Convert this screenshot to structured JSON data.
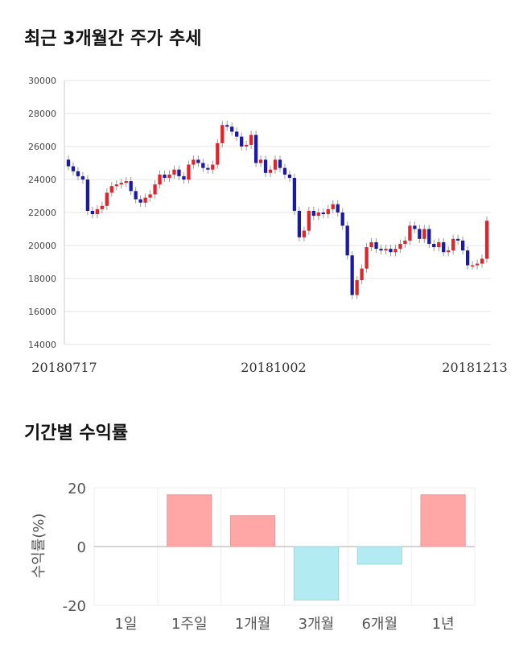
{
  "titles": {
    "price_trend": "최근 3개월간 주가 추세",
    "returns": "기간별 수익률"
  },
  "colors": {
    "up": "#e0252a",
    "down": "#1a1aa6",
    "positive_bar": "#ffa6a6",
    "negative_bar": "#b3ebf2",
    "grid": "#e6e6e6"
  },
  "chart_data": [
    {
      "type": "candlestick",
      "title": "최근 3개월간 주가 추세",
      "y_ticks": [
        "14000",
        "16000",
        "18000",
        "20000",
        "22000",
        "24000",
        "26000",
        "28000",
        "30000"
      ],
      "ylim": [
        14000,
        30000
      ],
      "x_labels": [
        "20180717",
        "20181002",
        "20181213"
      ],
      "grid": true,
      "close": [
        24800,
        24500,
        24200,
        24000,
        22100,
        21900,
        22200,
        22400,
        23200,
        23600,
        23700,
        23800,
        23900,
        23300,
        22800,
        22600,
        22900,
        23100,
        23700,
        24300,
        24100,
        24300,
        24600,
        24200,
        24000,
        24900,
        25200,
        25000,
        24700,
        24600,
        24900,
        26200,
        27300,
        27200,
        26900,
        26600,
        26000,
        26100,
        26700,
        25000,
        25200,
        24400,
        24600,
        25200,
        24700,
        24300,
        24100,
        22100,
        20500,
        20900,
        22100,
        21800,
        22000,
        21900,
        22200,
        22500,
        22000,
        21200,
        19400,
        17000,
        17900,
        18600,
        19900,
        20200,
        19800,
        19700,
        19800,
        19600,
        19800,
        20100,
        20300,
        21200,
        21000,
        20400,
        21000,
        20100,
        19900,
        20200,
        19600,
        19700,
        20400,
        20300,
        19700,
        18800,
        18800,
        18900,
        19200,
        21500
      ]
    },
    {
      "type": "bar",
      "title": "기간별 수익률",
      "categories": [
        "1일",
        "1주일",
        "1개월",
        "3개월",
        "6개월",
        "1년"
      ],
      "values": [
        0,
        17.6,
        10.5,
        -18.2,
        -6.0,
        17.6
      ],
      "ylabel": "수익률(%)",
      "y_ticks": [
        "20",
        "0",
        "-20"
      ],
      "ylim": [
        -20,
        20
      ],
      "grid": true
    }
  ]
}
